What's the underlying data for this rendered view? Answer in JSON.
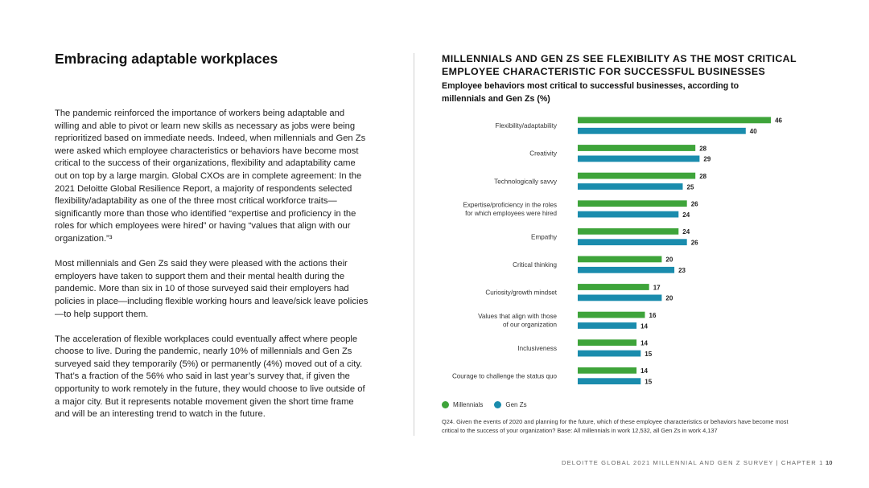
{
  "left": {
    "title": "Embracing adaptable workplaces",
    "paragraphs": [
      "The pandemic reinforced the importance of workers being adaptable and willing and able to pivot or learn new skills as necessary as jobs were being reprioritized based on immediate needs. Indeed, when millennials and Gen Zs were asked which employee characteristics or behaviors have become most critical to the success of their organizations, flexibility and adaptability came out on top by a large margin. Global CXOs are in complete agreement: In the 2021 Deloitte Global Resilience Report, a majority of respondents selected flexibility/adaptability as one of the three most critical workforce traits—significantly more than those who identified “expertise and proficiency in the roles for which employees were hired” or having “values that align with our organization.”³",
      "Most millennials and Gen Zs said they were pleased with the actions their employers have taken to support them and their mental health during the pandemic. More than six in 10 of those surveyed said their employers had policies in place—including flexible working hours and leave/sick leave policies—to help support them.",
      "The acceleration of flexible workplaces could eventually affect where people choose to live. During the pandemic, nearly 10% of millennials and Gen Zs surveyed said they temporarily (5%) or permanently (4%) moved out of a city. That’s a fraction of the 56% who said in last year’s survey that, if given the opportunity to work remotely in the future, they would choose to live outside of a major city. But it represents notable movement given the short time frame and will be an interesting trend to watch in the future."
    ]
  },
  "chart_data": {
    "type": "bar",
    "orientation": "horizontal",
    "title": "MILLENNIALS AND GEN ZS SEE FLEXIBILITY AS THE MOST CRITICAL EMPLOYEE CHARACTERISTIC FOR SUCCESSFUL BUSINESSES",
    "subtitle": "Employee behaviors most critical to successful businesses, according to millennials and Gen Zs (%)",
    "categories": [
      [
        "Flexibility/adaptability"
      ],
      [
        "Creativity"
      ],
      [
        "Technologically savvy"
      ],
      [
        "Expertise/proficiency in the roles",
        "for which employees were hired"
      ],
      [
        "Empathy"
      ],
      [
        "Critical thinking"
      ],
      [
        "Curiosity/growth mindset"
      ],
      [
        "Values that align with those",
        "of our organization"
      ],
      [
        "Inclusiveness"
      ],
      [
        "Courage to challenge the status quo"
      ]
    ],
    "series": [
      {
        "name": "Millennials",
        "color": "#3ea43a",
        "values": [
          46,
          28,
          28,
          26,
          24,
          20,
          17,
          16,
          14,
          14
        ]
      },
      {
        "name": "Gen Zs",
        "color": "#1a8cad",
        "values": [
          40,
          29,
          25,
          24,
          26,
          23,
          20,
          14,
          15,
          15
        ]
      }
    ],
    "legend_position": "bottom-left",
    "grid": false
  },
  "footnote": "Q24. Given the events of 2020 and planning for the future, which of these employee characteristics or behaviors have become most critical to the success of your organization? Base: All millennials in work 12,532, all Gen Zs in work 4,137",
  "footer": {
    "text": "DELOITTE GLOBAL 2021 MILLENNIAL AND GEN Z SURVEY | CHAPTER 1",
    "page": "10"
  }
}
